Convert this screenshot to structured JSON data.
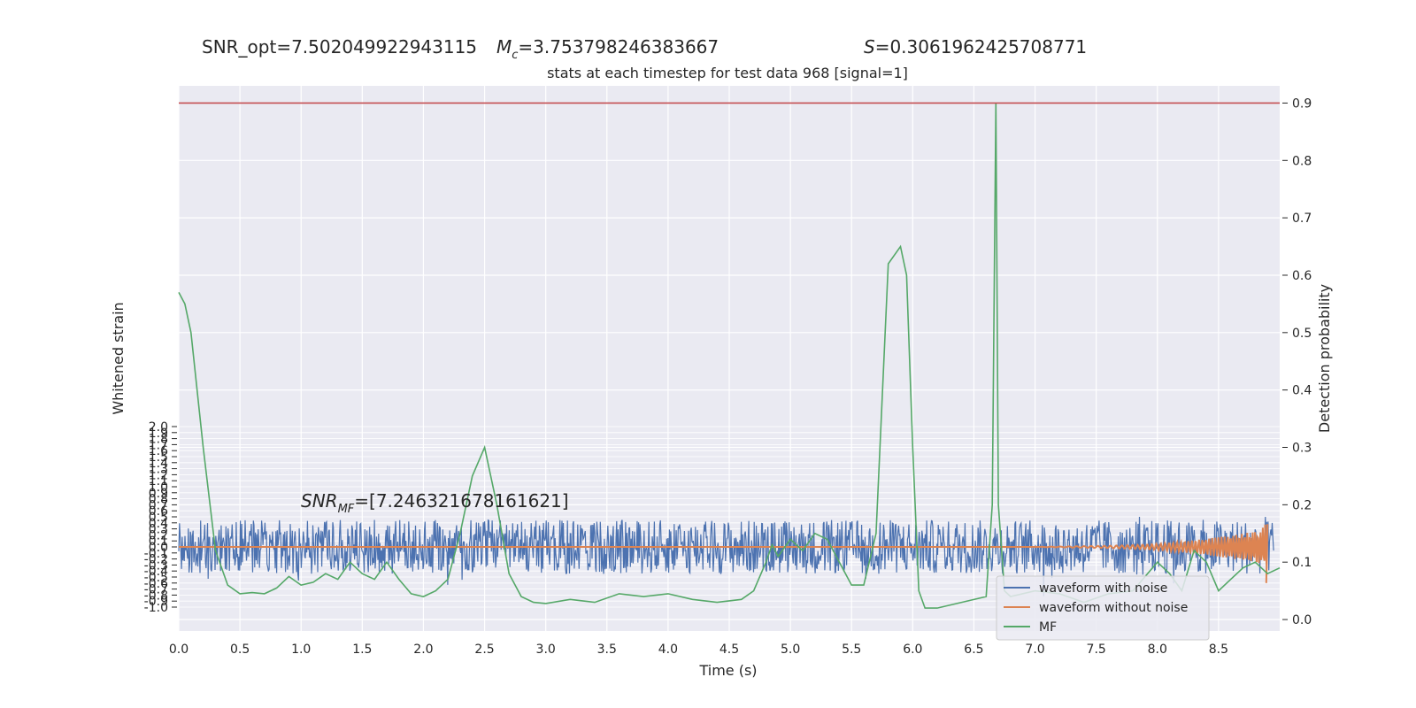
{
  "header": {
    "snr_opt": "SNR_opt=7.502049922943115",
    "mc_symbol": "M",
    "mc_sub": "c",
    "mc_value": "=3.753798246383667",
    "s_symbol": "S",
    "s_value": "=0.3061962425708771"
  },
  "chart_data": {
    "type": "line",
    "title": "stats at each timestep for test data 968 [signal=1]",
    "xlabel": "Time (s)",
    "ylabel_left": "Whitened strain",
    "ylabel_right": "Detection probability",
    "xlim": [
      0.0,
      9.0
    ],
    "xticks": [
      "0.0",
      "0.5",
      "1.0",
      "1.5",
      "2.0",
      "2.5",
      "3.0",
      "3.5",
      "4.0",
      "4.5",
      "5.0",
      "5.5",
      "6.0",
      "6.5",
      "7.0",
      "7.5",
      "8.0",
      "8.5"
    ],
    "ylim_right": [
      -0.02,
      0.93
    ],
    "yticks_right": [
      "0.0",
      "0.1",
      "0.2",
      "0.3",
      "0.4",
      "0.5",
      "0.6",
      "0.7",
      "0.8",
      "0.9"
    ],
    "yticks_left": [
      "2.0",
      "1.9",
      "1.8",
      "1.7",
      "1.6",
      "1.5",
      "1.4",
      "1.3",
      "1.2",
      "1.1",
      "1.0",
      "0.9",
      "0.8",
      "0.7",
      "0.6",
      "0.5",
      "0.4",
      "0.3",
      "0.2",
      "0.1",
      "0.0",
      "-0.1",
      "-0.2",
      "-0.3",
      "-0.4",
      "-0.5",
      "-0.6",
      "-0.7",
      "-0.8",
      "-0.9",
      "-1.0"
    ],
    "threshold": 0.9,
    "grid": true,
    "legend_position": "bottom-right",
    "annotation": {
      "label_main": "SNR",
      "label_sub": "MF",
      "value": "=[7.246321678161621]"
    },
    "series": [
      {
        "name": "waveform with noise",
        "color": "#4c72b0",
        "axis": "left",
        "note_range": [
          -0.9,
          0.5
        ]
      },
      {
        "name": "waveform without noise",
        "color": "#dd8452",
        "axis": "left",
        "x": [
          0.0,
          7.0,
          7.3,
          7.6,
          7.9,
          8.1,
          8.3,
          8.5,
          8.7,
          8.85,
          8.9
        ],
        "amplitude": [
          0.0,
          0.0,
          0.01,
          0.02,
          0.04,
          0.07,
          0.11,
          0.16,
          0.22,
          0.28,
          0.45
        ]
      },
      {
        "name": "MF",
        "color": "#55a868",
        "axis": "right",
        "x": [
          0.0,
          0.05,
          0.1,
          0.2,
          0.3,
          0.4,
          0.5,
          0.6,
          0.7,
          0.8,
          0.9,
          1.0,
          1.1,
          1.2,
          1.3,
          1.4,
          1.5,
          1.6,
          1.7,
          1.8,
          1.9,
          2.0,
          2.1,
          2.2,
          2.3,
          2.4,
          2.5,
          2.6,
          2.7,
          2.8,
          2.9,
          3.0,
          3.2,
          3.4,
          3.6,
          3.8,
          4.0,
          4.2,
          4.4,
          4.6,
          4.7,
          4.8,
          4.85,
          4.9,
          5.0,
          5.1,
          5.2,
          5.3,
          5.4,
          5.5,
          5.6,
          5.7,
          5.8,
          5.9,
          5.95,
          6.0,
          6.05,
          6.1,
          6.2,
          6.4,
          6.6,
          6.65,
          6.68,
          6.7,
          6.75,
          6.8,
          7.0,
          7.2,
          7.4,
          7.6,
          7.8,
          8.0,
          8.1,
          8.2,
          8.3,
          8.4,
          8.5,
          8.6,
          8.7,
          8.8,
          8.9,
          9.0
        ],
        "values": [
          0.57,
          0.55,
          0.5,
          0.3,
          0.12,
          0.06,
          0.045,
          0.047,
          0.045,
          0.055,
          0.075,
          0.06,
          0.065,
          0.08,
          0.07,
          0.1,
          0.08,
          0.07,
          0.1,
          0.07,
          0.045,
          0.04,
          0.05,
          0.07,
          0.15,
          0.25,
          0.3,
          0.2,
          0.08,
          0.04,
          0.03,
          0.028,
          0.035,
          0.03,
          0.045,
          0.04,
          0.045,
          0.035,
          0.03,
          0.035,
          0.05,
          0.1,
          0.13,
          0.11,
          0.14,
          0.12,
          0.15,
          0.14,
          0.1,
          0.06,
          0.06,
          0.15,
          0.62,
          0.65,
          0.6,
          0.3,
          0.05,
          0.02,
          0.02,
          0.03,
          0.04,
          0.2,
          0.9,
          0.2,
          0.05,
          0.04,
          0.05,
          0.045,
          0.03,
          0.045,
          0.05,
          0.1,
          0.08,
          0.05,
          0.12,
          0.1,
          0.05,
          0.07,
          0.09,
          0.1,
          0.08,
          0.09
        ]
      }
    ]
  }
}
